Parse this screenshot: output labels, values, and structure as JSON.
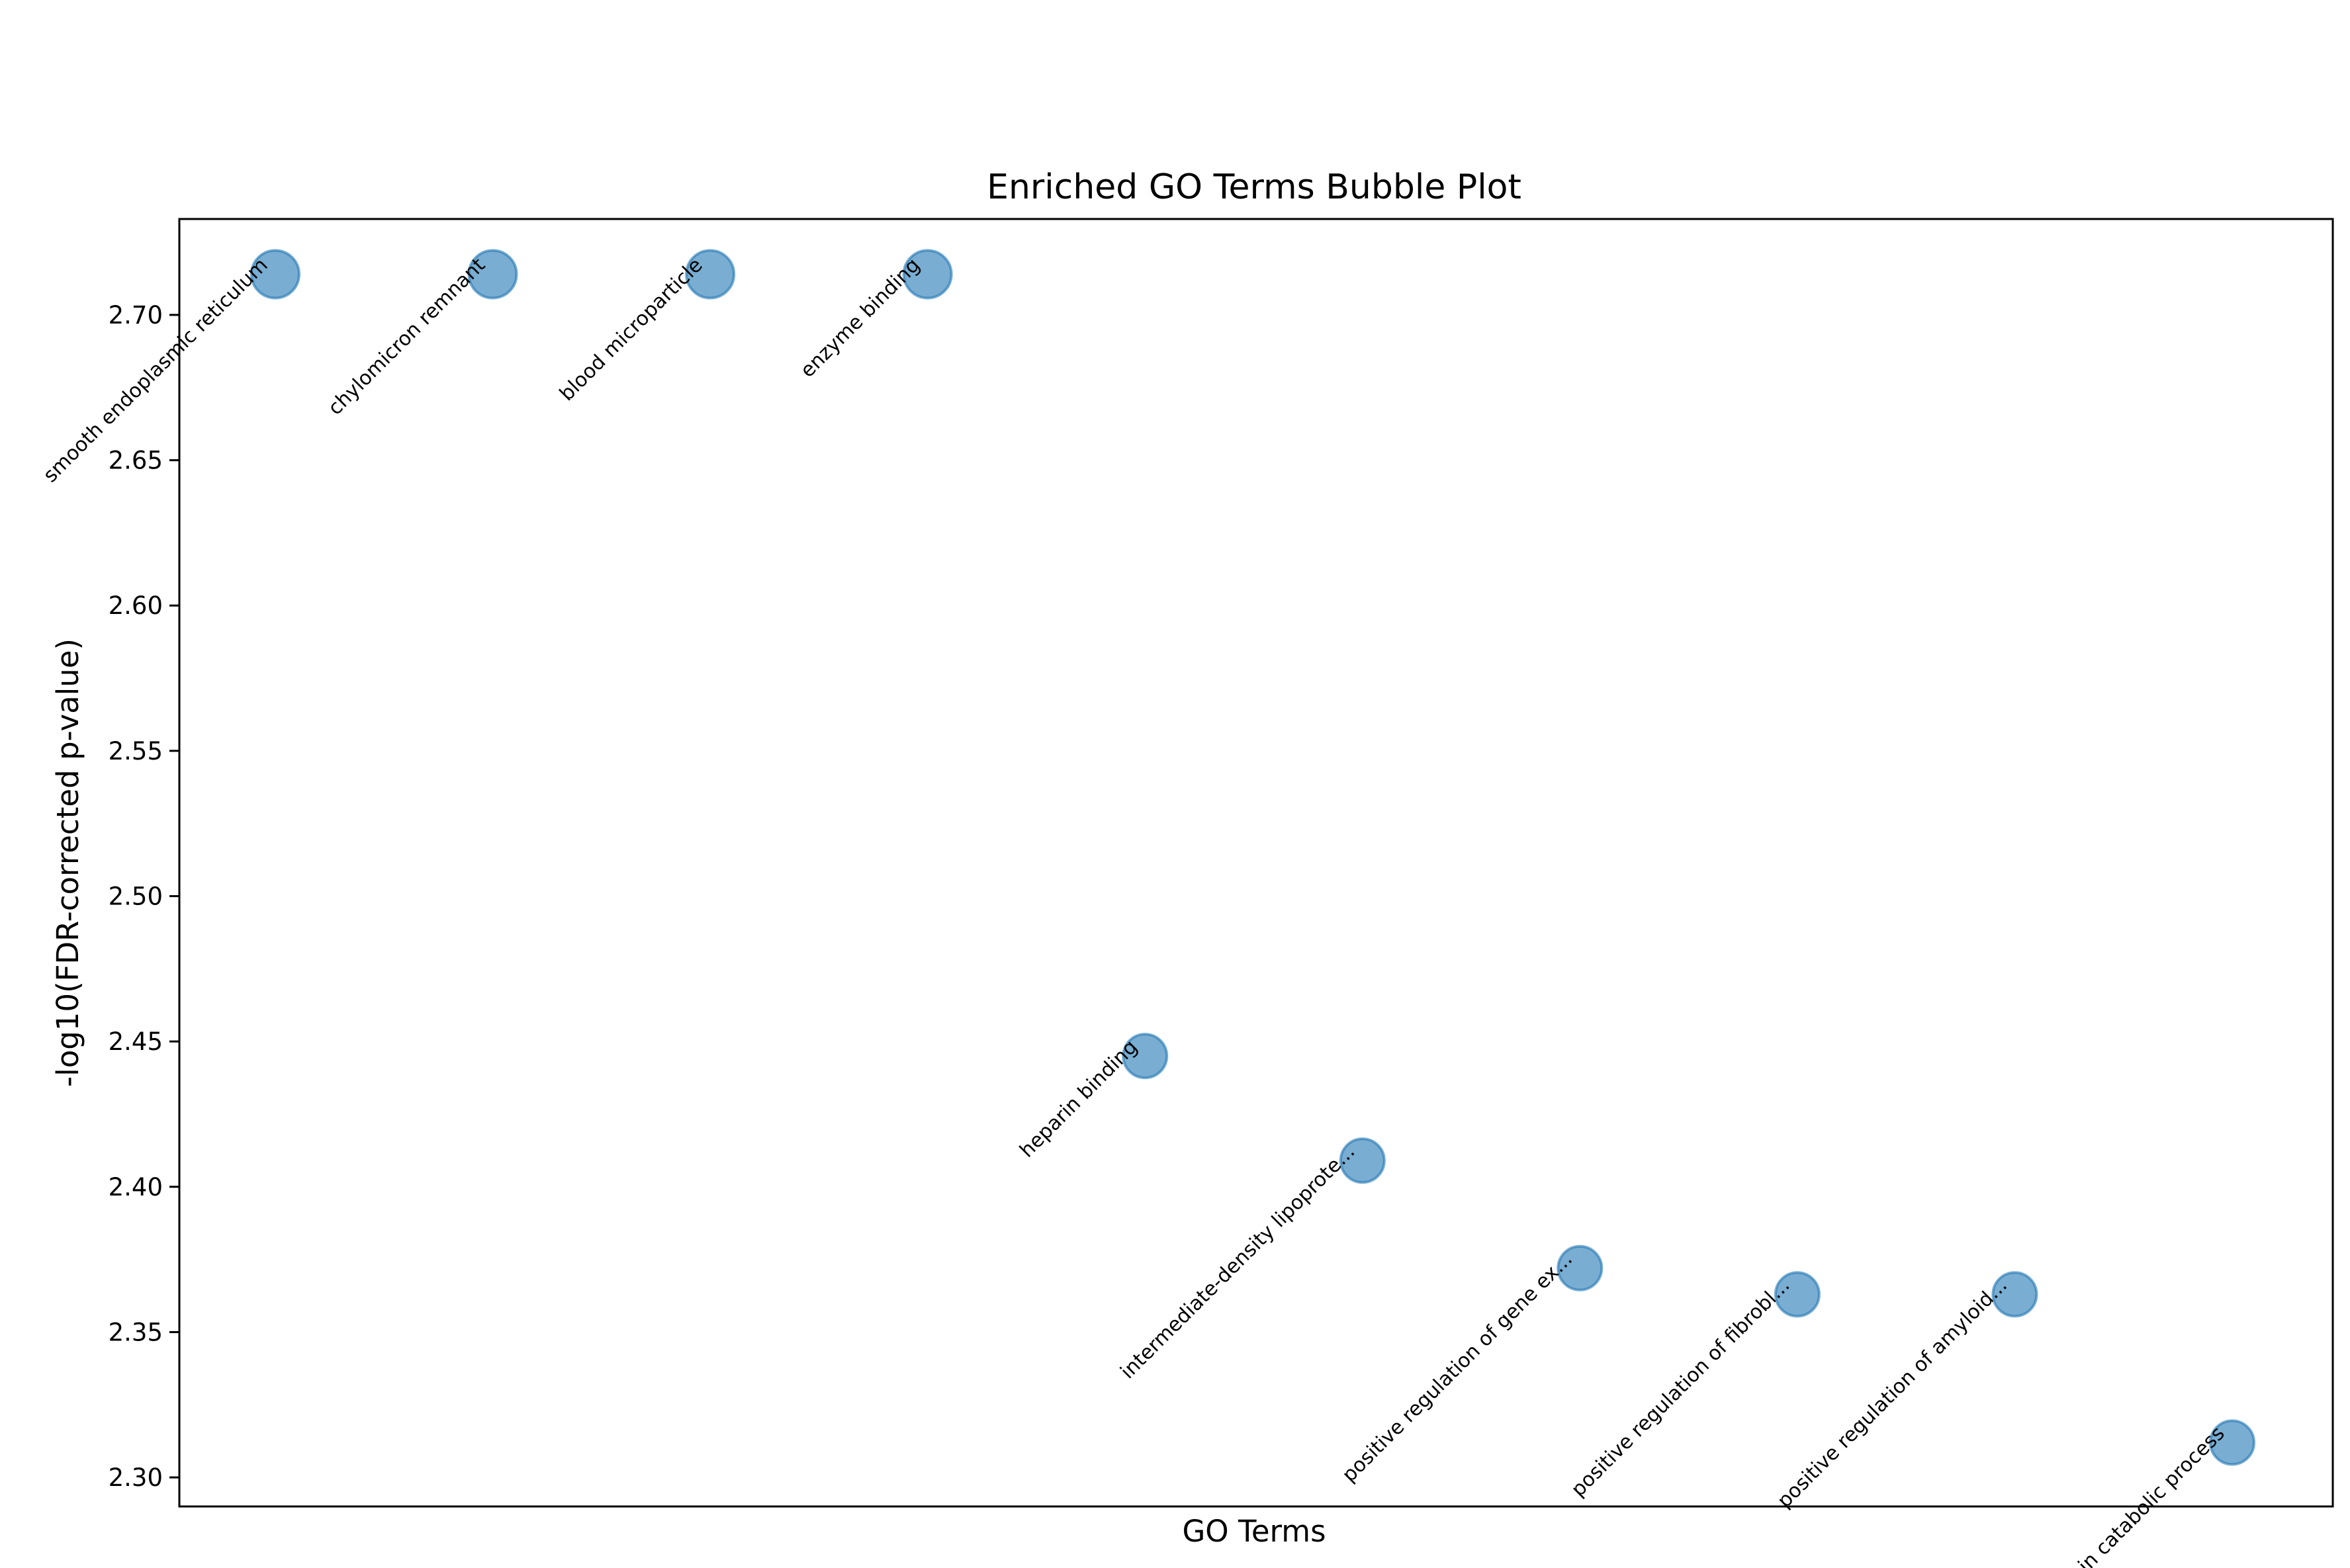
{
  "chart_data": {
    "type": "scatter",
    "title": "Enriched GO Terms Bubble Plot",
    "xlabel": "GO Terms",
    "ylabel": "-log10(FDR-corrected p-value)",
    "ylim": [
      2.29,
      2.733
    ],
    "yticks": [
      "2.30",
      "2.35",
      "2.40",
      "2.45",
      "2.50",
      "2.55",
      "2.60",
      "2.65",
      "2.70"
    ],
    "x_ticks_visible": false,
    "grid": false,
    "legend": "none",
    "marker_color": "#1f77b4",
    "points": [
      {
        "label": "smooth endoplasmic reticulum",
        "y": 2.714
      },
      {
        "label": "chylomicron remnant",
        "y": 2.714
      },
      {
        "label": "blood microparticle",
        "y": 2.714
      },
      {
        "label": "enzyme binding",
        "y": 2.714
      },
      {
        "label": "heparin binding",
        "y": 2.445
      },
      {
        "label": "intermediate-density lipoprote...",
        "y": 2.409
      },
      {
        "label": "positive regulation of gene ex...",
        "y": 2.372
      },
      {
        "label": "positive regulation of fibrobl...",
        "y": 2.363
      },
      {
        "label": "positive regulation of amyloid...",
        "y": 2.363
      },
      {
        "label": "lipoprotein catabolic process",
        "y": 2.312
      }
    ]
  }
}
